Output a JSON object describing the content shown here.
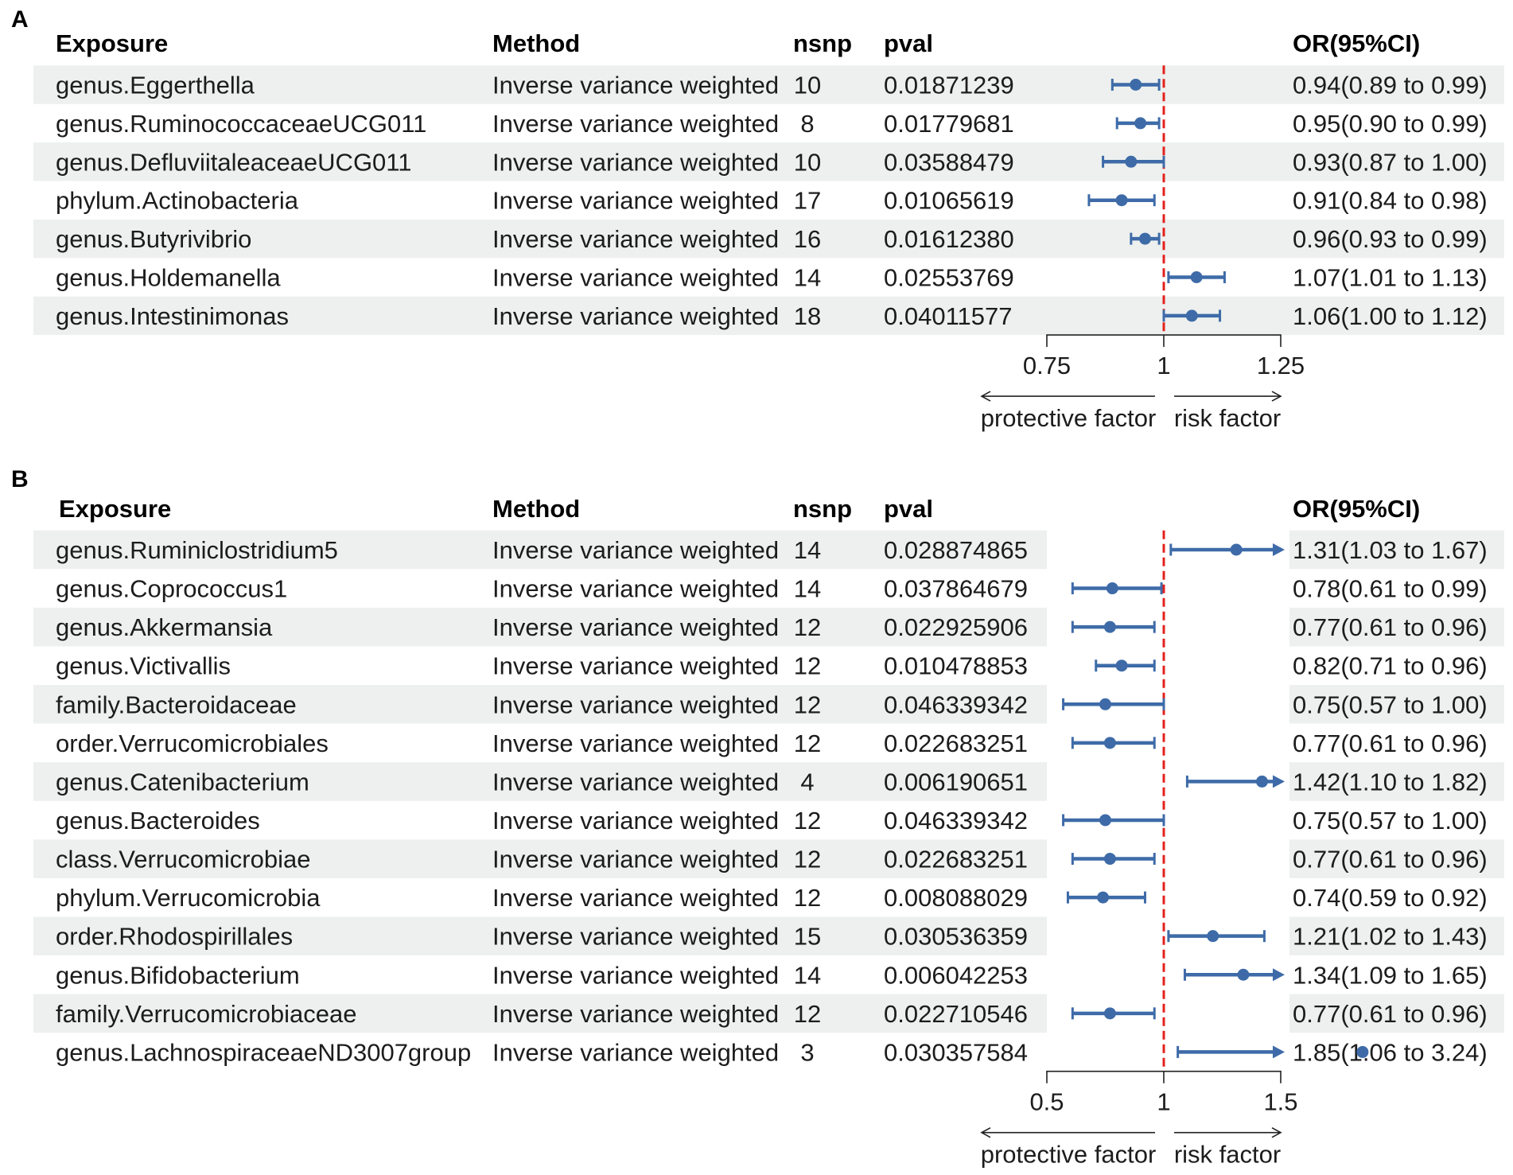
{
  "colors": {
    "point_and_ci": "#3e6ba8",
    "reference_line": "#e3211c",
    "row_stripe": "#edf0ee",
    "axis": "#222222"
  },
  "chart_data": [
    {
      "panel_label": "A",
      "type": "forest",
      "columns": {
        "exposure": "Exposure",
        "method": "Method",
        "nsnp": "nsnp",
        "pval": "pval",
        "or_ci": "OR(95%CI)"
      },
      "rows": [
        {
          "exposure": "genus.Eggerthella",
          "method": "Inverse variance weighted",
          "nsnp": 10,
          "pval": "0.01871239",
          "or": 0.94,
          "lower": 0.89,
          "upper": 0.99,
          "or_ci": "0.94(0.89 to 0.99)"
        },
        {
          "exposure": "genus.RuminococcaceaeUCG011",
          "method": "Inverse variance weighted",
          "nsnp": 8,
          "pval": "0.01779681",
          "or": 0.95,
          "lower": 0.9,
          "upper": 0.99,
          "or_ci": "0.95(0.90 to 0.99)"
        },
        {
          "exposure": "genus.DefluviitaleaceaeUCG011",
          "method": "Inverse variance weighted",
          "nsnp": 10,
          "pval": "0.03588479",
          "or": 0.93,
          "lower": 0.87,
          "upper": 1.0,
          "or_ci": "0.93(0.87 to 1.00)"
        },
        {
          "exposure": "phylum.Actinobacteria",
          "method": "Inverse variance weighted",
          "nsnp": 17,
          "pval": "0.01065619",
          "or": 0.91,
          "lower": 0.84,
          "upper": 0.98,
          "or_ci": "0.91(0.84 to 0.98)"
        },
        {
          "exposure": "genus.Butyrivibrio",
          "method": "Inverse variance weighted",
          "nsnp": 16,
          "pval": "0.01612380",
          "or": 0.96,
          "lower": 0.93,
          "upper": 0.99,
          "or_ci": "0.96(0.93 to 0.99)"
        },
        {
          "exposure": "genus.Holdemanella",
          "method": "Inverse variance weighted",
          "nsnp": 14,
          "pval": "0.02553769",
          "or": 1.07,
          "lower": 1.01,
          "upper": 1.13,
          "or_ci": "1.07(1.01 to 1.13)"
        },
        {
          "exposure": "genus.Intestinimonas",
          "method": "Inverse variance weighted",
          "nsnp": 18,
          "pval": "0.04011577",
          "or": 1.06,
          "lower": 1.0,
          "upper": 1.12,
          "or_ci": "1.06(1.00 to 1.12)"
        }
      ],
      "x_axis": {
        "xlim": [
          0.75,
          1.25
        ],
        "ticks": [
          0.75,
          1,
          1.25
        ],
        "tick_labels": [
          "0.75",
          "1",
          "1.25"
        ],
        "reference_line": 1
      },
      "direction_labels": {
        "left": "protective factor",
        "right": "risk factor"
      }
    },
    {
      "panel_label": "B",
      "type": "forest",
      "columns": {
        "exposure": "Exposure",
        "method": "Method",
        "nsnp": "nsnp",
        "pval": "pval",
        "or_ci": "OR(95%CI)"
      },
      "rows": [
        {
          "exposure": "genus.Ruminiclostridium5",
          "method": "Inverse variance weighted",
          "nsnp": 14,
          "pval": "0.028874865",
          "or": 1.31,
          "lower": 1.03,
          "upper": 1.67,
          "or_ci": "1.31(1.03 to 1.67)"
        },
        {
          "exposure": "genus.Coprococcus1",
          "method": "Inverse variance weighted",
          "nsnp": 14,
          "pval": "0.037864679",
          "or": 0.78,
          "lower": 0.61,
          "upper": 0.99,
          "or_ci": "0.78(0.61 to 0.99)"
        },
        {
          "exposure": "genus.Akkermansia",
          "method": "Inverse variance weighted",
          "nsnp": 12,
          "pval": "0.022925906",
          "or": 0.77,
          "lower": 0.61,
          "upper": 0.96,
          "or_ci": "0.77(0.61 to 0.96)"
        },
        {
          "exposure": "genus.Victivallis",
          "method": "Inverse variance weighted",
          "nsnp": 12,
          "pval": "0.010478853",
          "or": 0.82,
          "lower": 0.71,
          "upper": 0.96,
          "or_ci": "0.82(0.71 to 0.96)"
        },
        {
          "exposure": "family.Bacteroidaceae",
          "method": "Inverse variance weighted",
          "nsnp": 12,
          "pval": "0.046339342",
          "or": 0.75,
          "lower": 0.57,
          "upper": 1.0,
          "or_ci": "0.75(0.57 to 1.00)"
        },
        {
          "exposure": "order.Verrucomicrobiales",
          "method": "Inverse variance weighted",
          "nsnp": 12,
          "pval": "0.022683251",
          "or": 0.77,
          "lower": 0.61,
          "upper": 0.96,
          "or_ci": "0.77(0.61 to 0.96)"
        },
        {
          "exposure": "genus.Catenibacterium",
          "method": "Inverse variance weighted",
          "nsnp": 4,
          "pval": "0.006190651",
          "or": 1.42,
          "lower": 1.1,
          "upper": 1.82,
          "or_ci": "1.42(1.10 to 1.82)"
        },
        {
          "exposure": "genus.Bacteroides",
          "method": "Inverse variance weighted",
          "nsnp": 12,
          "pval": "0.046339342",
          "or": 0.75,
          "lower": 0.57,
          "upper": 1.0,
          "or_ci": "0.75(0.57 to 1.00)"
        },
        {
          "exposure": "class.Verrucomicrobiae",
          "method": "Inverse variance weighted",
          "nsnp": 12,
          "pval": "0.022683251",
          "or": 0.77,
          "lower": 0.61,
          "upper": 0.96,
          "or_ci": "0.77(0.61 to 0.96)"
        },
        {
          "exposure": "phylum.Verrucomicrobia",
          "method": "Inverse variance weighted",
          "nsnp": 12,
          "pval": "0.008088029",
          "or": 0.74,
          "lower": 0.59,
          "upper": 0.92,
          "or_ci": "0.74(0.59 to 0.92)"
        },
        {
          "exposure": "order.Rhodospirillales",
          "method": "Inverse variance weighted",
          "nsnp": 15,
          "pval": "0.030536359",
          "or": 1.21,
          "lower": 1.02,
          "upper": 1.43,
          "or_ci": "1.21(1.02 to 1.43)"
        },
        {
          "exposure": "genus.Bifidobacterium",
          "method": "Inverse variance weighted",
          "nsnp": 14,
          "pval": "0.006042253",
          "or": 1.34,
          "lower": 1.09,
          "upper": 1.65,
          "or_ci": "1.34(1.09 to 1.65)"
        },
        {
          "exposure": "family.Verrucomicrobiaceae",
          "method": "Inverse variance weighted",
          "nsnp": 12,
          "pval": "0.022710546",
          "or": 0.77,
          "lower": 0.61,
          "upper": 0.96,
          "or_ci": "0.77(0.61 to 0.96)"
        },
        {
          "exposure": "genus.LachnospiraceaeND3007group",
          "method": "Inverse variance weighted",
          "nsnp": 3,
          "pval": "0.030357584",
          "or": 1.85,
          "lower": 1.06,
          "upper": 3.24,
          "or_ci": "1.85(1.06 to 3.24)"
        }
      ],
      "x_axis": {
        "xlim": [
          0.5,
          1.5
        ],
        "ticks": [
          0.5,
          1,
          1.5
        ],
        "tick_labels": [
          "0.5",
          "1",
          "1.5"
        ],
        "reference_line": 1
      },
      "direction_labels": {
        "left": "protective factor",
        "right": "risk factor"
      }
    }
  ]
}
